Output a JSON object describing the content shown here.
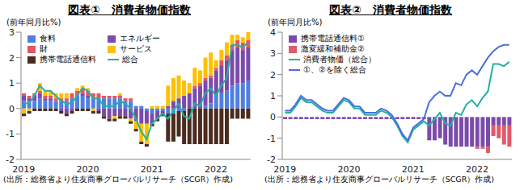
{
  "chart_data": [
    {
      "type": "bar",
      "title": "図表①　消費者物価指数",
      "y_label": "(前年同月比%)",
      "source": "(出所：総務省より住友商事グローバルリサーチ（SCGR）作成)",
      "stacked": true,
      "grid": false,
      "legend": "upper left",
      "categories": [
        "2019",
        null,
        null,
        null,
        null,
        null,
        null,
        null,
        null,
        null,
        null,
        null,
        "2020",
        null,
        null,
        null,
        null,
        null,
        null,
        null,
        null,
        null,
        null,
        null,
        "2021",
        null,
        null,
        null,
        null,
        null,
        null,
        null,
        null,
        null,
        null,
        null,
        "2022",
        null,
        null,
        null,
        null,
        null,
        null
      ],
      "ylim": [
        -2,
        3
      ],
      "yticks": [
        -2,
        -1,
        0,
        1,
        2,
        3
      ],
      "series": [
        {
          "name": "食料",
          "type": "bar",
          "color": "#4f7fe3",
          "values": [
            0.3,
            0.3,
            0.3,
            0.4,
            0.3,
            0.3,
            0.3,
            0.3,
            0.3,
            0.4,
            0.5,
            0.5,
            0.4,
            0.4,
            0.4,
            0.4,
            0.4,
            0.4,
            0.4,
            0.3,
            0.3,
            0.1,
            0.1,
            -0.1,
            -0.2,
            -0.1,
            -0.1,
            -0.2,
            -0.2,
            -0.1,
            -0.1,
            0.0,
            0.0,
            0.0,
            0.1,
            0.2,
            0.5,
            0.6,
            0.7,
            0.9,
            1.0,
            1.0,
            1.1
          ]
        },
        {
          "name": "エネルギー",
          "type": "bar",
          "color": "#7b4bab",
          "values": [
            0.2,
            0.1,
            0.2,
            0.2,
            0.1,
            0.1,
            0.0,
            -0.1,
            -0.2,
            -0.1,
            0.0,
            0.1,
            0.1,
            0.0,
            -0.1,
            -0.3,
            -0.4,
            -0.3,
            -0.3,
            -0.3,
            -0.4,
            -0.5,
            -0.6,
            -0.5,
            -0.4,
            -0.3,
            -0.1,
            0.1,
            0.3,
            0.4,
            0.5,
            0.6,
            0.8,
            0.9,
            1.0,
            1.0,
            1.0,
            1.1,
            1.2,
            1.4,
            1.4,
            1.3,
            1.3
          ]
        },
        {
          "name": "財",
          "type": "bar",
          "color": "#e8555f",
          "values": [
            0.1,
            0.1,
            0.1,
            0.1,
            0.1,
            0.1,
            0.1,
            0.1,
            0.1,
            0.2,
            0.2,
            0.2,
            0.2,
            0.2,
            0.2,
            0.1,
            0.1,
            0.1,
            0.1,
            0.1,
            0.1,
            0.0,
            0.0,
            0.0,
            0.0,
            0.0,
            0.0,
            0.0,
            0.0,
            0.0,
            0.0,
            0.0,
            0.1,
            0.1,
            0.1,
            0.1,
            0.1,
            0.2,
            0.2,
            0.2,
            0.3,
            0.3,
            0.3
          ]
        },
        {
          "name": "サービス",
          "type": "bar",
          "color": "#ffc000",
          "values": [
            -0.2,
            -0.1,
            0.0,
            0.3,
            0.2,
            0.2,
            0.2,
            0.2,
            0.2,
            0.0,
            0.1,
            0.1,
            0.1,
            -0.1,
            0.0,
            0.0,
            0.0,
            -0.1,
            0.1,
            0.0,
            -0.1,
            -0.3,
            -0.7,
            -0.8,
            0.1,
            0.1,
            0.1,
            0.8,
            0.9,
            0.9,
            0.6,
            0.4,
            0.7,
            0.5,
            0.8,
            0.9,
            0.3,
            0.4,
            0.5,
            0.4,
            0.2,
            0.2,
            0.3
          ]
        },
        {
          "name": "携帯電話通信料",
          "type": "bar",
          "color": "#4a2b1d",
          "values": [
            -0.1,
            -0.1,
            -0.1,
            -0.1,
            -0.1,
            -0.1,
            -0.1,
            -0.1,
            -0.1,
            -0.1,
            -0.1,
            -0.1,
            -0.1,
            -0.1,
            -0.1,
            -0.1,
            -0.1,
            -0.1,
            -0.1,
            -0.1,
            -0.1,
            -0.1,
            -0.1,
            -0.1,
            -0.1,
            -0.1,
            -0.1,
            -1.1,
            -1.1,
            -1.0,
            -1.3,
            -1.4,
            -1.4,
            -1.4,
            -1.4,
            -1.4,
            -1.4,
            -1.4,
            -1.4,
            -0.4,
            -0.4,
            -0.4,
            -0.4
          ]
        },
        {
          "name": "総合",
          "type": "line",
          "color": "#20b2a0",
          "values": [
            0.2,
            0.2,
            0.5,
            0.9,
            0.7,
            0.7,
            0.5,
            0.3,
            0.2,
            0.2,
            0.5,
            0.8,
            0.7,
            0.4,
            0.4,
            0.1,
            0.1,
            0.1,
            0.3,
            0.2,
            0.0,
            -0.4,
            -0.9,
            -1.2,
            -0.6,
            -0.4,
            -0.2,
            -0.4,
            -0.1,
            0.2,
            -0.3,
            -0.4,
            0.2,
            0.1,
            0.6,
            0.8,
            0.5,
            0.9,
            1.2,
            2.5,
            2.5,
            2.4,
            2.6
          ]
        }
      ]
    },
    {
      "type": "bar",
      "title": "図表②　消費者物価指数",
      "y_label": "(前年同月比%)",
      "source": "(出所：総務省より住友商事グローバルリサーチ（SCGR）作成)",
      "stacked": true,
      "grid": false,
      "legend": "upper left",
      "categories": [
        "2019",
        null,
        null,
        null,
        null,
        null,
        null,
        null,
        null,
        null,
        null,
        null,
        "2020",
        null,
        null,
        null,
        null,
        null,
        null,
        null,
        null,
        null,
        null,
        null,
        "2021",
        null,
        null,
        null,
        null,
        null,
        null,
        null,
        null,
        null,
        null,
        null,
        "2022",
        null,
        null,
        null,
        null,
        null,
        null
      ],
      "ylim": [
        -2,
        4
      ],
      "yticks": [
        -2,
        -1,
        0,
        1,
        2,
        3,
        4
      ],
      "series": [
        {
          "name": "携帯電話通信料①",
          "type": "bar",
          "color": "#7b4bab",
          "values": [
            -0.1,
            -0.1,
            -0.1,
            -0.1,
            -0.1,
            -0.1,
            -0.1,
            -0.1,
            -0.1,
            -0.1,
            -0.1,
            -0.1,
            -0.1,
            -0.1,
            -0.1,
            -0.1,
            -0.1,
            -0.1,
            -0.1,
            -0.1,
            -0.1,
            -0.1,
            -0.1,
            -0.1,
            -0.1,
            -0.1,
            -0.1,
            -1.1,
            -1.1,
            -1.0,
            -1.3,
            -1.4,
            -1.4,
            -1.4,
            -1.4,
            -1.4,
            -1.4,
            -1.4,
            -1.4,
            -0.4,
            -0.4,
            -0.4,
            -0.4
          ]
        },
        {
          "name": "激変緩和補助金②",
          "type": "bar",
          "color": "#e05a6a",
          "values": [
            null,
            null,
            null,
            null,
            null,
            null,
            null,
            null,
            null,
            null,
            null,
            null,
            null,
            null,
            null,
            null,
            null,
            null,
            null,
            null,
            null,
            null,
            null,
            null,
            null,
            null,
            null,
            null,
            null,
            null,
            null,
            null,
            null,
            null,
            null,
            null,
            -0.1,
            -0.1,
            -0.3,
            -0.5,
            -0.6,
            -0.9,
            -1.0
          ]
        },
        {
          "name": "消費者物価（総合）",
          "type": "line",
          "color": "#20b2a0",
          "values": [
            0.2,
            0.2,
            0.5,
            0.9,
            0.7,
            0.7,
            0.5,
            0.3,
            0.2,
            0.2,
            0.5,
            0.8,
            0.7,
            0.4,
            0.4,
            0.1,
            0.1,
            0.1,
            0.3,
            0.2,
            0.0,
            -0.4,
            -0.9,
            -1.2,
            -0.6,
            -0.4,
            -0.2,
            -0.4,
            -0.1,
            0.2,
            -0.3,
            -0.4,
            0.2,
            0.1,
            0.6,
            0.8,
            0.5,
            0.9,
            1.2,
            2.5,
            2.5,
            2.4,
            2.6
          ]
        },
        {
          "name": "①、②を除く総合",
          "type": "line",
          "color": "#4a6ee0",
          "values": [
            0.3,
            0.3,
            0.6,
            1.0,
            0.8,
            0.8,
            0.6,
            0.4,
            0.3,
            0.3,
            0.6,
            0.9,
            0.8,
            0.5,
            0.5,
            0.2,
            0.2,
            0.2,
            0.4,
            0.3,
            0.1,
            -0.3,
            -0.8,
            -1.1,
            -0.5,
            -0.3,
            -0.1,
            0.7,
            1.0,
            1.2,
            1.0,
            1.0,
            1.6,
            1.5,
            2.0,
            2.2,
            2.0,
            2.4,
            2.8,
            3.1,
            3.3,
            3.4,
            3.4
          ]
        }
      ]
    }
  ]
}
